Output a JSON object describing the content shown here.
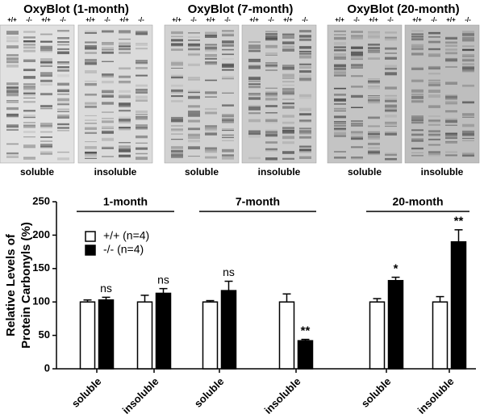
{
  "blots": [
    {
      "title": "OxyBlot (1-month)",
      "panels": [
        {
          "label": "soluble",
          "lanes": [
            "+/+",
            "-/-",
            "+/+",
            "-/-"
          ]
        },
        {
          "label": "insoluble",
          "lanes": [
            "+/+",
            "-/-",
            "+/+",
            "-/-"
          ]
        }
      ]
    },
    {
      "title": "OxyBlot (7-month)",
      "panels": [
        {
          "label": "soluble",
          "lanes": [
            "+/+",
            "-/-",
            "+/+",
            "-/-"
          ]
        },
        {
          "label": "insoluble",
          "lanes": [
            "+/+",
            "-/-",
            "+/+",
            "-/-"
          ]
        }
      ]
    },
    {
      "title": "OxyBlot (20-month)",
      "panels": [
        {
          "label": "soluble",
          "lanes": [
            "+/+",
            "-/-",
            "+/+",
            "-/-"
          ]
        },
        {
          "label": "insoluble",
          "lanes": [
            "+/+",
            "-/-",
            "+/+",
            "-/-"
          ]
        }
      ]
    }
  ],
  "chart_data": {
    "type": "bar",
    "ylabel": [
      "Relative Levels of",
      "Protein Carbonyls (%)"
    ],
    "groups": [
      "1-month",
      "7-month",
      "20-month"
    ],
    "categories": [
      "soluble",
      "insoluble",
      "soluble",
      "insoluble",
      "soluble",
      "insoluble"
    ],
    "series": [
      {
        "name": "+/+ (n=4)",
        "color": "#ffffff",
        "values": [
          100,
          100,
          100,
          100,
          100,
          100
        ],
        "errors": [
          3,
          10,
          2,
          12,
          5,
          8
        ]
      },
      {
        "name": "-/- (n=4)",
        "color": "#000000",
        "values": [
          103,
          113,
          117,
          42,
          132,
          190
        ],
        "errors": [
          4,
          7,
          14,
          2,
          5,
          18
        ],
        "significance": [
          "ns",
          "ns",
          "ns",
          "**",
          "*",
          "**"
        ]
      }
    ],
    "ylim": [
      0,
      250
    ],
    "yticks": [
      0,
      50,
      100,
      150,
      200,
      250
    ],
    "grid": false
  }
}
